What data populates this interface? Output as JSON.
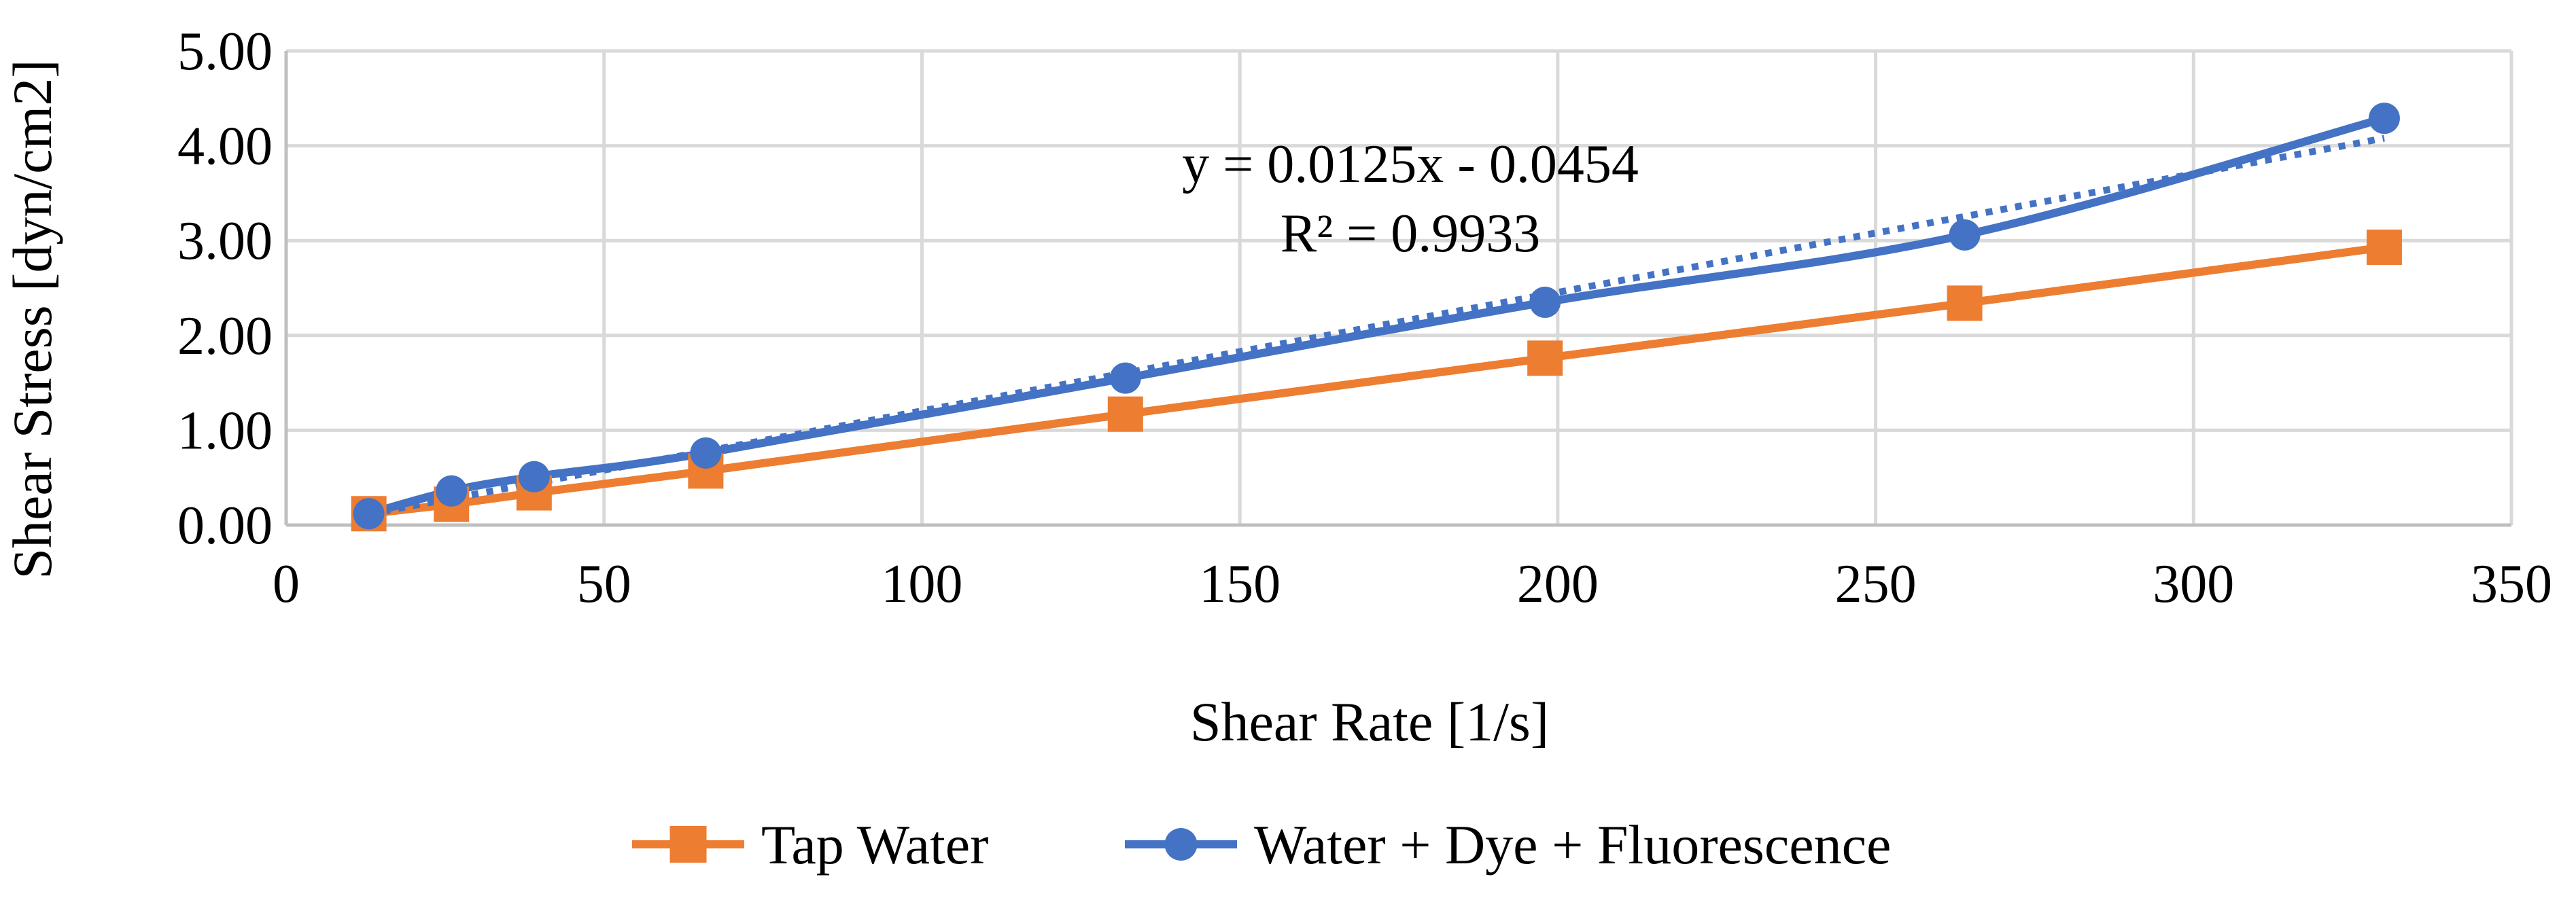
{
  "chart_data": {
    "type": "scatter",
    "title": "",
    "xlabel": "Shear Rate [1/s]",
    "ylabel": "Shear Stress [dyn/cm2]",
    "xlim": [
      0,
      350
    ],
    "ylim": [
      0,
      5
    ],
    "x_ticks": [
      0,
      50,
      100,
      150,
      200,
      250,
      300,
      350
    ],
    "y_ticks": [
      0,
      1,
      2,
      3,
      4,
      5
    ],
    "x_tick_labels": [
      "0",
      "50",
      "100",
      "150",
      "200",
      "250",
      "300",
      "350"
    ],
    "y_tick_labels": [
      "0.00",
      "1.00",
      "2.00",
      "3.00",
      "4.00",
      "5.00"
    ],
    "grid": true,
    "legend_position": "bottom",
    "series": [
      {
        "name": "Tap Water",
        "color": "#ED7D31",
        "marker": "square",
        "line": "straight",
        "x": [
          13,
          26,
          39,
          66,
          132,
          198,
          264,
          330
        ],
        "y": [
          0.12,
          0.22,
          0.34,
          0.57,
          1.17,
          1.76,
          2.34,
          2.93
        ]
      },
      {
        "name": "Water + Dye + Fluorescence",
        "color": "#4472C4",
        "marker": "circle",
        "line": "smooth",
        "x": [
          13,
          26,
          39,
          66,
          132,
          198,
          264,
          330
        ],
        "y": [
          0.12,
          0.36,
          0.51,
          0.76,
          1.55,
          2.35,
          3.06,
          4.29
        ]
      }
    ],
    "trendline": {
      "series": "Water + Dye + Fluorescence",
      "style": "dotted",
      "color": "#4472C4",
      "slope": 0.0125,
      "intercept": -0.0454,
      "x_range": [
        13,
        330
      ],
      "equation_label": "y = 0.0125x - 0.0454",
      "r2_label": "R² = 0.9933"
    }
  }
}
